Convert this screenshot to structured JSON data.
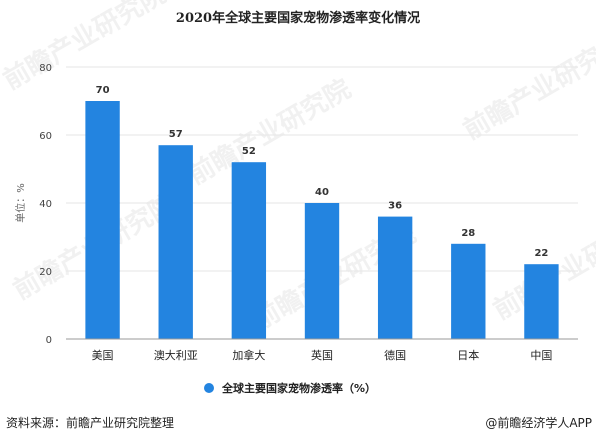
{
  "chart_data": {
    "type": "bar",
    "title": "2020年全球主要国家宠物渗透率变化情况",
    "ylabel": "单位：%",
    "categories": [
      "美国",
      "澳大利亚",
      "加拿大",
      "英国",
      "德国",
      "日本",
      "中国"
    ],
    "series": [
      {
        "name": "全球主要国家宠物渗透率（%）",
        "values": [
          70,
          57,
          52,
          40,
          36,
          28,
          22
        ]
      }
    ],
    "ylim": [
      0,
      80
    ],
    "yticks": [
      0,
      20,
      40,
      60,
      80
    ],
    "grid": true,
    "legend_position": "bottom",
    "colors": {
      "bar": "#2384e0",
      "grid": "#e6e6e6",
      "axis": "#9a9a9a"
    }
  },
  "footer": {
    "source": "资料来源：前瞻产业研究院整理",
    "brand": "@前瞻经济学人APP"
  },
  "watermark": {
    "text": "前瞻产业研究院"
  }
}
